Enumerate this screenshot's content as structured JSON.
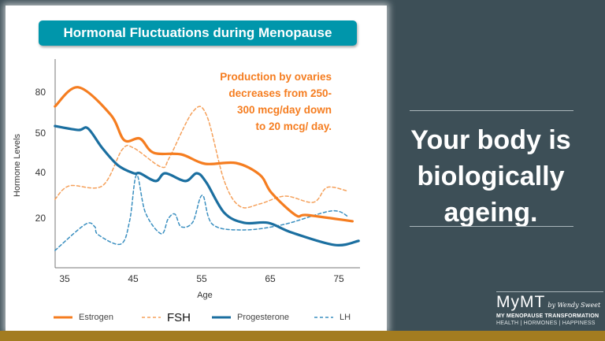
{
  "slide": {
    "title": "Hormonal Fluctuations during Menopause",
    "note_lines": [
      "Production by ovaries",
      "decreases from 250-",
      "300 mcg/day down",
      "to 20 mcg/ day."
    ],
    "headline_lines": [
      "Your body is",
      "biologically",
      "ageing."
    ],
    "logo": {
      "name": "MyMT",
      "byline": "by Wendy Sweet",
      "tagline": "MY MENOPAUSE TRANSFORMATION",
      "values": "HEALTH | HORMONES | HAPPINESS"
    },
    "colors": {
      "background": "#3d4f57",
      "title_box": "#0096ab",
      "accent_gold": "#a37c20",
      "note": "#f57d20"
    }
  },
  "chart_data": {
    "type": "line",
    "title": "Hormonal Fluctuations during Menopause",
    "xlabel": "Age",
    "ylabel": "Hormone Levels",
    "xlim": [
      34,
      78
    ],
    "x_ticks": [
      35,
      45,
      55,
      65,
      75
    ],
    "y_ticks": [
      20,
      40,
      50,
      80
    ],
    "y_scale": "non-uniform (tick labels evenly spaced)",
    "grid": false,
    "legend": "bottom",
    "series": [
      {
        "name": "Estrogen",
        "style": "solid",
        "color": "#f57d20",
        "points": [
          [
            33.6,
            69
          ],
          [
            37,
            83
          ],
          [
            41.7,
            63
          ],
          [
            43.7,
            48
          ],
          [
            46,
            48.4
          ],
          [
            48,
            44.8
          ],
          [
            52,
            44.4
          ],
          [
            55.5,
            42
          ],
          [
            60,
            42.2
          ],
          [
            63.5,
            38.6
          ],
          [
            65.2,
            30.7
          ],
          [
            68.7,
            21
          ],
          [
            70.4,
            21
          ],
          [
            77,
            18.3
          ]
        ]
      },
      {
        "name": "FSH",
        "style": "dashed",
        "color": "#f5a05a",
        "points": [
          [
            33.6,
            27.9
          ],
          [
            35.7,
            33.8
          ],
          [
            40.5,
            33.8
          ],
          [
            43.4,
            45.6
          ],
          [
            45.1,
            46
          ],
          [
            49.1,
            41.2
          ],
          [
            50.3,
            43.6
          ],
          [
            53.7,
            65
          ],
          [
            55.7,
            62.7
          ],
          [
            58.3,
            35.9
          ],
          [
            60.6,
            24.8
          ],
          [
            63.5,
            25.9
          ],
          [
            67.2,
            29.3
          ],
          [
            71.3,
            26.6
          ],
          [
            73.3,
            33.1
          ],
          [
            76.1,
            31.7
          ]
        ]
      },
      {
        "name": "Progesterone",
        "style": "solid",
        "color": "#1b6fa0",
        "points": [
          [
            33.6,
            54.6
          ],
          [
            37,
            51.7
          ],
          [
            38.4,
            52.9
          ],
          [
            40.5,
            46
          ],
          [
            42.8,
            41.6
          ],
          [
            45.1,
            39.3
          ],
          [
            46,
            39.3
          ],
          [
            48.3,
            35.9
          ],
          [
            49.7,
            39.3
          ],
          [
            52.6,
            35.9
          ],
          [
            54.3,
            39.3
          ],
          [
            55.7,
            35.2
          ],
          [
            58.3,
            22
          ],
          [
            61.2,
            17.6
          ],
          [
            64.7,
            17.6
          ],
          [
            68.1,
            13.4
          ],
          [
            74.4,
            7.9
          ],
          [
            77.9,
            9.7
          ]
        ]
      },
      {
        "name": "LH",
        "style": "dashed",
        "color": "#3a8fc0",
        "points": [
          [
            33.6,
            5.5
          ],
          [
            38,
            16.9
          ],
          [
            39.4,
            15.9
          ],
          [
            39.9,
            12.4
          ],
          [
            43.2,
            8.3
          ],
          [
            44.5,
            18.6
          ],
          [
            45.5,
            38.6
          ],
          [
            46.8,
            22
          ],
          [
            49.1,
            12.8
          ],
          [
            50.1,
            19.3
          ],
          [
            51.1,
            21.4
          ],
          [
            52,
            15.9
          ],
          [
            53.7,
            17.9
          ],
          [
            55.1,
            29.7
          ],
          [
            56.6,
            16.9
          ],
          [
            61.2,
            14.5
          ],
          [
            67,
            16.9
          ],
          [
            73.9,
            22.8
          ],
          [
            76.4,
            20.3
          ]
        ]
      }
    ]
  }
}
